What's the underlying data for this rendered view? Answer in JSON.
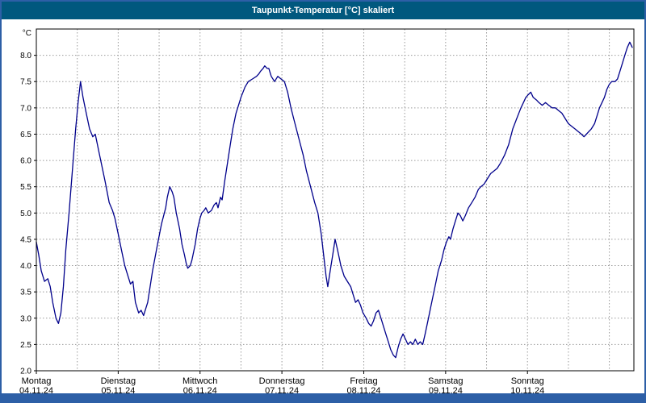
{
  "window": {
    "title": "Taupunkt-Temperatur [°C] skaliert"
  },
  "colors": {
    "titlebar_bg": "#00587e",
    "titlebar_text": "#ffffff",
    "frame": "#2d5fa6",
    "window_bg": "#ffffff",
    "plot_bg": "#ffffff",
    "plot_border": "#000000",
    "grid": "#9b9b9b",
    "axis_text": "#000000",
    "line": "#00008b"
  },
  "chart_data": {
    "type": "line",
    "title": "Taupunkt-Temperatur [°C] skaliert",
    "unit_label": "°C",
    "xlabel": "",
    "ylabel": "°C",
    "xlim": [
      0,
      7.3
    ],
    "ylim": [
      2.0,
      8.5
    ],
    "x_grid_step": 0.5,
    "grid": true,
    "legend": "none",
    "y_ticks": [
      {
        "v": 2.0,
        "label": "2.0"
      },
      {
        "v": 2.5,
        "label": "2.5"
      },
      {
        "v": 3.0,
        "label": "3.0"
      },
      {
        "v": 3.5,
        "label": "3.5"
      },
      {
        "v": 4.0,
        "label": "4.0"
      },
      {
        "v": 4.5,
        "label": "4.5"
      },
      {
        "v": 5.0,
        "label": "5.0"
      },
      {
        "v": 5.5,
        "label": "5.5"
      },
      {
        "v": 6.0,
        "label": "6.0"
      },
      {
        "v": 6.5,
        "label": "6.5"
      },
      {
        "v": 7.0,
        "label": "7.0"
      },
      {
        "v": 7.5,
        "label": "7.5"
      },
      {
        "v": 8.0,
        "label": "8.0"
      }
    ],
    "days": [
      {
        "name": "Montag",
        "date": "04.11.24",
        "x": 0
      },
      {
        "name": "Dienstag",
        "date": "05.11.24",
        "x": 1
      },
      {
        "name": "Mittwoch",
        "date": "06.11.24",
        "x": 2
      },
      {
        "name": "Donnerstag",
        "date": "07.11.24",
        "x": 3
      },
      {
        "name": "Freitag",
        "date": "08.11.24",
        "x": 4
      },
      {
        "name": "Samstag",
        "date": "09.11.24",
        "x": 5
      },
      {
        "name": "Sonntag",
        "date": "10.11.24",
        "x": 6
      }
    ],
    "series": [
      {
        "name": "Taupunkt-Temperatur",
        "color": "#00008b",
        "points": [
          [
            0.0,
            4.45
          ],
          [
            0.03,
            4.2
          ],
          [
            0.06,
            3.9
          ],
          [
            0.1,
            3.7
          ],
          [
            0.14,
            3.75
          ],
          [
            0.17,
            3.6
          ],
          [
            0.2,
            3.3
          ],
          [
            0.24,
            3.0
          ],
          [
            0.27,
            2.9
          ],
          [
            0.3,
            3.1
          ],
          [
            0.33,
            3.6
          ],
          [
            0.36,
            4.3
          ],
          [
            0.4,
            5.0
          ],
          [
            0.44,
            5.8
          ],
          [
            0.48,
            6.6
          ],
          [
            0.51,
            7.1
          ],
          [
            0.54,
            7.5
          ],
          [
            0.57,
            7.2
          ],
          [
            0.61,
            6.9
          ],
          [
            0.65,
            6.6
          ],
          [
            0.69,
            6.45
          ],
          [
            0.72,
            6.5
          ],
          [
            0.76,
            6.2
          ],
          [
            0.8,
            5.9
          ],
          [
            0.84,
            5.6
          ],
          [
            0.89,
            5.2
          ],
          [
            0.93,
            5.05
          ],
          [
            0.96,
            4.9
          ],
          [
            1.0,
            4.6
          ],
          [
            1.04,
            4.3
          ],
          [
            1.08,
            4.0
          ],
          [
            1.12,
            3.8
          ],
          [
            1.15,
            3.65
          ],
          [
            1.18,
            3.7
          ],
          [
            1.21,
            3.3
          ],
          [
            1.25,
            3.1
          ],
          [
            1.28,
            3.15
          ],
          [
            1.31,
            3.05
          ],
          [
            1.36,
            3.3
          ],
          [
            1.42,
            3.9
          ],
          [
            1.48,
            4.4
          ],
          [
            1.53,
            4.8
          ],
          [
            1.58,
            5.1
          ],
          [
            1.6,
            5.3
          ],
          [
            1.63,
            5.5
          ],
          [
            1.66,
            5.4
          ],
          [
            1.68,
            5.3
          ],
          [
            1.71,
            5.0
          ],
          [
            1.75,
            4.7
          ],
          [
            1.78,
            4.4
          ],
          [
            1.81,
            4.2
          ],
          [
            1.83,
            4.05
          ],
          [
            1.85,
            3.95
          ],
          [
            1.88,
            4.0
          ],
          [
            1.9,
            4.1
          ],
          [
            1.94,
            4.4
          ],
          [
            1.97,
            4.7
          ],
          [
            2.0,
            4.9
          ],
          [
            2.02,
            5.0
          ],
          [
            2.05,
            5.05
          ],
          [
            2.07,
            5.1
          ],
          [
            2.1,
            5.0
          ],
          [
            2.14,
            5.05
          ],
          [
            2.17,
            5.15
          ],
          [
            2.2,
            5.2
          ],
          [
            2.22,
            5.1
          ],
          [
            2.25,
            5.3
          ],
          [
            2.27,
            5.25
          ],
          [
            2.3,
            5.6
          ],
          [
            2.33,
            5.9
          ],
          [
            2.37,
            6.3
          ],
          [
            2.4,
            6.6
          ],
          [
            2.44,
            6.9
          ],
          [
            2.47,
            7.05
          ],
          [
            2.5,
            7.2
          ],
          [
            2.55,
            7.4
          ],
          [
            2.59,
            7.5
          ],
          [
            2.64,
            7.55
          ],
          [
            2.69,
            7.6
          ],
          [
            2.72,
            7.65
          ],
          [
            2.74,
            7.7
          ],
          [
            2.77,
            7.75
          ],
          [
            2.79,
            7.8
          ],
          [
            2.82,
            7.75
          ],
          [
            2.84,
            7.75
          ],
          [
            2.87,
            7.6
          ],
          [
            2.91,
            7.5
          ],
          [
            2.95,
            7.6
          ],
          [
            2.99,
            7.55
          ],
          [
            3.03,
            7.5
          ],
          [
            3.07,
            7.3
          ],
          [
            3.11,
            7.0
          ],
          [
            3.16,
            6.7
          ],
          [
            3.21,
            6.4
          ],
          [
            3.26,
            6.1
          ],
          [
            3.3,
            5.8
          ],
          [
            3.35,
            5.5
          ],
          [
            3.4,
            5.2
          ],
          [
            3.44,
            5.0
          ],
          [
            3.48,
            4.6
          ],
          [
            3.51,
            4.2
          ],
          [
            3.54,
            3.8
          ],
          [
            3.56,
            3.6
          ],
          [
            3.59,
            3.9
          ],
          [
            3.62,
            4.2
          ],
          [
            3.65,
            4.5
          ],
          [
            3.68,
            4.3
          ],
          [
            3.72,
            4.0
          ],
          [
            3.76,
            3.8
          ],
          [
            3.8,
            3.7
          ],
          [
            3.84,
            3.6
          ],
          [
            3.87,
            3.45
          ],
          [
            3.9,
            3.3
          ],
          [
            3.93,
            3.35
          ],
          [
            3.96,
            3.25
          ],
          [
            3.99,
            3.1
          ],
          [
            4.03,
            3.0
          ],
          [
            4.06,
            2.9
          ],
          [
            4.09,
            2.85
          ],
          [
            4.12,
            2.95
          ],
          [
            4.15,
            3.1
          ],
          [
            4.18,
            3.15
          ],
          [
            4.21,
            3.0
          ],
          [
            4.24,
            2.85
          ],
          [
            4.27,
            2.7
          ],
          [
            4.3,
            2.55
          ],
          [
            4.33,
            2.4
          ],
          [
            4.36,
            2.3
          ],
          [
            4.39,
            2.25
          ],
          [
            4.42,
            2.45
          ],
          [
            4.45,
            2.6
          ],
          [
            4.48,
            2.7
          ],
          [
            4.51,
            2.6
          ],
          [
            4.54,
            2.5
          ],
          [
            4.57,
            2.55
          ],
          [
            4.6,
            2.5
          ],
          [
            4.63,
            2.6
          ],
          [
            4.66,
            2.5
          ],
          [
            4.69,
            2.55
          ],
          [
            4.72,
            2.5
          ],
          [
            4.75,
            2.7
          ],
          [
            4.79,
            3.0
          ],
          [
            4.83,
            3.3
          ],
          [
            4.87,
            3.6
          ],
          [
            4.91,
            3.9
          ],
          [
            4.95,
            4.1
          ],
          [
            4.98,
            4.3
          ],
          [
            5.01,
            4.45
          ],
          [
            5.04,
            4.55
          ],
          [
            5.06,
            4.5
          ],
          [
            5.09,
            4.7
          ],
          [
            5.12,
            4.85
          ],
          [
            5.15,
            5.0
          ],
          [
            5.18,
            4.95
          ],
          [
            5.21,
            4.85
          ],
          [
            5.24,
            4.95
          ],
          [
            5.28,
            5.1
          ],
          [
            5.32,
            5.2
          ],
          [
            5.36,
            5.3
          ],
          [
            5.4,
            5.45
          ],
          [
            5.43,
            5.5
          ],
          [
            5.47,
            5.55
          ],
          [
            5.51,
            5.65
          ],
          [
            5.55,
            5.75
          ],
          [
            5.59,
            5.8
          ],
          [
            5.63,
            5.85
          ],
          [
            5.67,
            5.95
          ],
          [
            5.72,
            6.1
          ],
          [
            5.77,
            6.3
          ],
          [
            5.82,
            6.6
          ],
          [
            5.87,
            6.8
          ],
          [
            5.92,
            7.0
          ],
          [
            5.95,
            7.1
          ],
          [
            5.98,
            7.2
          ],
          [
            6.01,
            7.25
          ],
          [
            6.04,
            7.3
          ],
          [
            6.07,
            7.2
          ],
          [
            6.11,
            7.15
          ],
          [
            6.14,
            7.1
          ],
          [
            6.18,
            7.05
          ],
          [
            6.22,
            7.1
          ],
          [
            6.26,
            7.05
          ],
          [
            6.3,
            7.0
          ],
          [
            6.34,
            7.0
          ],
          [
            6.38,
            6.95
          ],
          [
            6.42,
            6.9
          ],
          [
            6.46,
            6.8
          ],
          [
            6.5,
            6.7
          ],
          [
            6.54,
            6.65
          ],
          [
            6.58,
            6.6
          ],
          [
            6.62,
            6.55
          ],
          [
            6.66,
            6.5
          ],
          [
            6.69,
            6.45
          ],
          [
            6.72,
            6.5
          ],
          [
            6.75,
            6.55
          ],
          [
            6.78,
            6.6
          ],
          [
            6.82,
            6.7
          ],
          [
            6.85,
            6.85
          ],
          [
            6.88,
            7.0
          ],
          [
            6.91,
            7.1
          ],
          [
            6.94,
            7.2
          ],
          [
            6.97,
            7.35
          ],
          [
            7.0,
            7.45
          ],
          [
            7.03,
            7.5
          ],
          [
            7.07,
            7.5
          ],
          [
            7.1,
            7.55
          ],
          [
            7.13,
            7.7
          ],
          [
            7.16,
            7.85
          ],
          [
            7.19,
            8.0
          ],
          [
            7.22,
            8.15
          ],
          [
            7.25,
            8.25
          ],
          [
            7.28,
            8.15
          ]
        ]
      }
    ]
  }
}
